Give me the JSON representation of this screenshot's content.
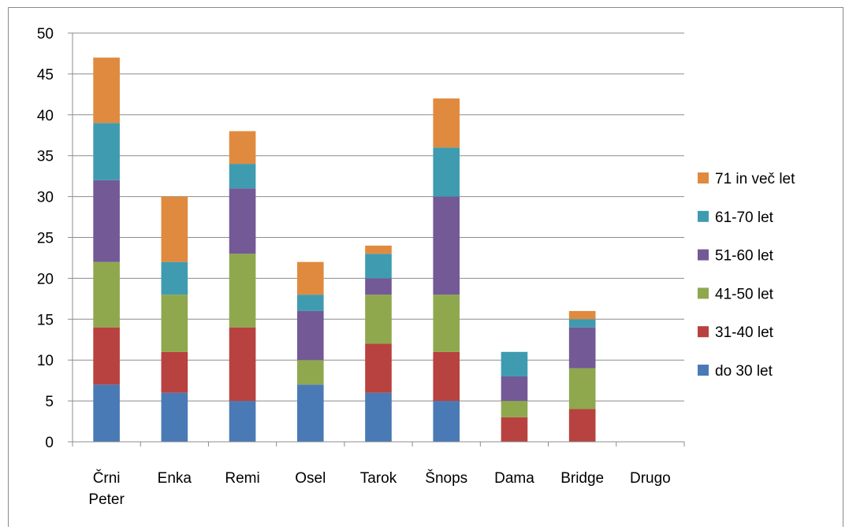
{
  "chart_data": {
    "type": "bar",
    "stacked": true,
    "categories": [
      [
        "Črni",
        "Peter"
      ],
      [
        "Enka"
      ],
      [
        "Remi"
      ],
      [
        "Osel"
      ],
      [
        "Tarok"
      ],
      [
        "Šnops"
      ],
      [
        "Dama"
      ],
      [
        "Bridge"
      ],
      [
        "Drugo"
      ]
    ],
    "series": [
      {
        "name": "do 30 let",
        "color": "#4a7ab5",
        "values": [
          7,
          6,
          5,
          7,
          6,
          5,
          0,
          0,
          0
        ]
      },
      {
        "name": "31-40 let",
        "color": "#b8423f",
        "values": [
          7,
          5,
          9,
          0,
          6,
          6,
          3,
          4,
          0
        ]
      },
      {
        "name": "41-50 let",
        "color": "#8fa84e",
        "values": [
          8,
          7,
          9,
          3,
          6,
          7,
          2,
          5,
          0
        ]
      },
      {
        "name": "51-60 let",
        "color": "#735996",
        "values": [
          10,
          0,
          8,
          6,
          2,
          12,
          3,
          5,
          0
        ]
      },
      {
        "name": "61-70 let",
        "color": "#3f9bb0",
        "values": [
          7,
          4,
          3,
          2,
          3,
          6,
          3,
          1,
          0
        ]
      },
      {
        "name": "71 in več let",
        "color": "#e08a3f",
        "values": [
          8,
          8,
          4,
          4,
          1,
          6,
          0,
          1,
          0
        ]
      }
    ],
    "ylim": [
      0,
      50
    ],
    "yticks": [
      "0",
      "5",
      "10",
      "15",
      "20",
      "25",
      "30",
      "35",
      "40",
      "45",
      "50"
    ],
    "grid": true,
    "legend_position": "right",
    "title": "",
    "xlabel": "",
    "ylabel": ""
  }
}
